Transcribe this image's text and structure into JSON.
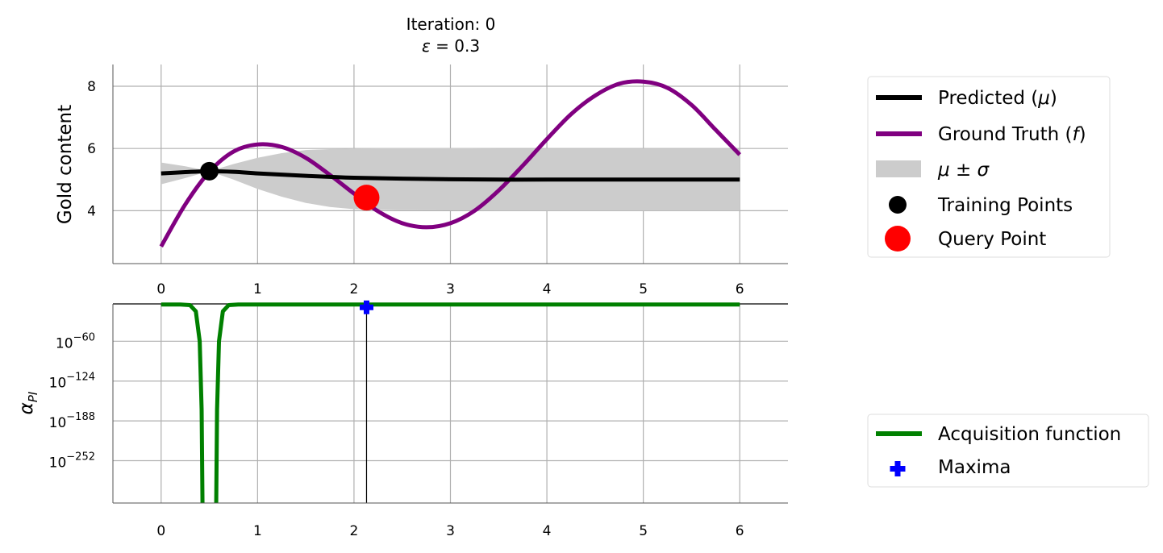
{
  "title_line1": "Iteration: 0",
  "title_line2_symbol": "ε",
  "title_line2_rest": " = 0.3",
  "colors": {
    "predicted": "#000000",
    "ground_truth": "#800080",
    "band": "#cccccc",
    "training": "#000000",
    "query": "#ff0000",
    "acquisition": "#008000",
    "maxima": "#0000ff"
  },
  "chart_data": [
    {
      "type": "line",
      "ylabel": "Gold content",
      "xlim": [
        -0.5,
        6.5
      ],
      "ylim": [
        2.3,
        8.7
      ],
      "x_ticks": [
        "0",
        "1",
        "2",
        "3",
        "4",
        "5",
        "6"
      ],
      "y_ticks": [
        "4",
        "6",
        "8"
      ],
      "grid": true,
      "series": [
        {
          "name": "Predicted (μ)",
          "x": [
            0,
            0.25,
            0.5,
            0.75,
            1.0,
            1.25,
            1.5,
            1.75,
            2.0,
            2.5,
            3.0,
            3.5,
            4.0,
            5.0,
            6.0
          ],
          "y": [
            5.2,
            5.24,
            5.27,
            5.25,
            5.2,
            5.16,
            5.12,
            5.09,
            5.06,
            5.03,
            5.01,
            5.0,
            5.0,
            5.0,
            5.0
          ]
        },
        {
          "name": "Ground Truth (f)",
          "x": [
            0,
            0.25,
            0.5,
            0.75,
            1.0,
            1.25,
            1.5,
            1.75,
            2.0,
            2.25,
            2.5,
            2.75,
            3.0,
            3.25,
            3.5,
            3.75,
            4.0,
            4.25,
            4.5,
            4.75,
            5.0,
            5.25,
            5.5,
            5.75,
            6.0
          ],
          "y": [
            2.85,
            4.2,
            5.25,
            5.9,
            6.13,
            6.05,
            5.7,
            5.15,
            4.55,
            3.98,
            3.6,
            3.47,
            3.6,
            4.0,
            4.65,
            5.45,
            6.3,
            7.1,
            7.7,
            8.08,
            8.15,
            7.95,
            7.4,
            6.6,
            5.8
          ]
        }
      ],
      "band": {
        "name": "μ ± σ",
        "x": [
          0,
          0.25,
          0.5,
          0.75,
          1.0,
          1.25,
          1.5,
          1.75,
          2.0,
          2.5,
          3.0,
          3.5,
          4.0,
          5.0,
          6.0
        ],
        "lower": [
          4.85,
          5.05,
          5.27,
          5.0,
          4.7,
          4.45,
          4.25,
          4.12,
          4.05,
          4.02,
          4.01,
          4.0,
          4.0,
          4.0,
          4.0
        ],
        "upper": [
          5.55,
          5.43,
          5.27,
          5.5,
          5.7,
          5.85,
          5.95,
          5.98,
          6.0,
          6.01,
          6.01,
          6.0,
          6.0,
          6.0,
          6.0
        ]
      },
      "points": [
        {
          "name": "Training Points",
          "x": [
            0.5
          ],
          "y": [
            5.27
          ]
        },
        {
          "name": "Query Point",
          "x": [
            2.13
          ],
          "y": [
            4.42
          ]
        }
      ]
    },
    {
      "type": "line",
      "ylabel_symbol": "α",
      "ylabel_subscript": "PI",
      "xlim": [
        -0.5,
        6.5
      ],
      "ylim_exponent": [
        -320,
        0
      ],
      "scale": "log",
      "x_ticks": [
        "0",
        "1",
        "2",
        "3",
        "4",
        "5",
        "6"
      ],
      "y_ticks": [
        {
          "base": "10",
          "exp": "−60",
          "value": -60
        },
        {
          "base": "10",
          "exp": "−124",
          "value": -124
        },
        {
          "base": "10",
          "exp": "−188",
          "value": -188
        },
        {
          "base": "10",
          "exp": "−252",
          "value": -252
        }
      ],
      "grid": true,
      "series": [
        {
          "name": "Acquisition function",
          "x": [
            0,
            0.2,
            0.3,
            0.36,
            0.4,
            0.42,
            0.43,
            0.57,
            0.58,
            0.6,
            0.64,
            0.7,
            0.8,
            1.0,
            2.0,
            3.0,
            4.0,
            5.0,
            6.0
          ],
          "log10_y": [
            -1,
            -1,
            -2,
            -12,
            -60,
            -170,
            -400,
            -400,
            -170,
            -60,
            -12,
            -2,
            -1,
            -1,
            -1,
            -1,
            -1,
            -1,
            -1
          ]
        }
      ],
      "points": [
        {
          "name": "Maxima",
          "x": [
            2.13
          ],
          "log10_y": [
            -1
          ]
        }
      ]
    }
  ],
  "legend_top": {
    "predicted_label": "Predicted (",
    "predicted_symbol": "μ",
    "predicted_close": ")",
    "truth_label": "Ground Truth (",
    "truth_symbol": "f",
    "truth_close": ")",
    "band_label": "μ ± σ",
    "training_label": "Training Points",
    "query_label": "Query Point"
  },
  "legend_bottom": {
    "acquisition_label": "Acquisition function",
    "maxima_label": "Maxima"
  }
}
